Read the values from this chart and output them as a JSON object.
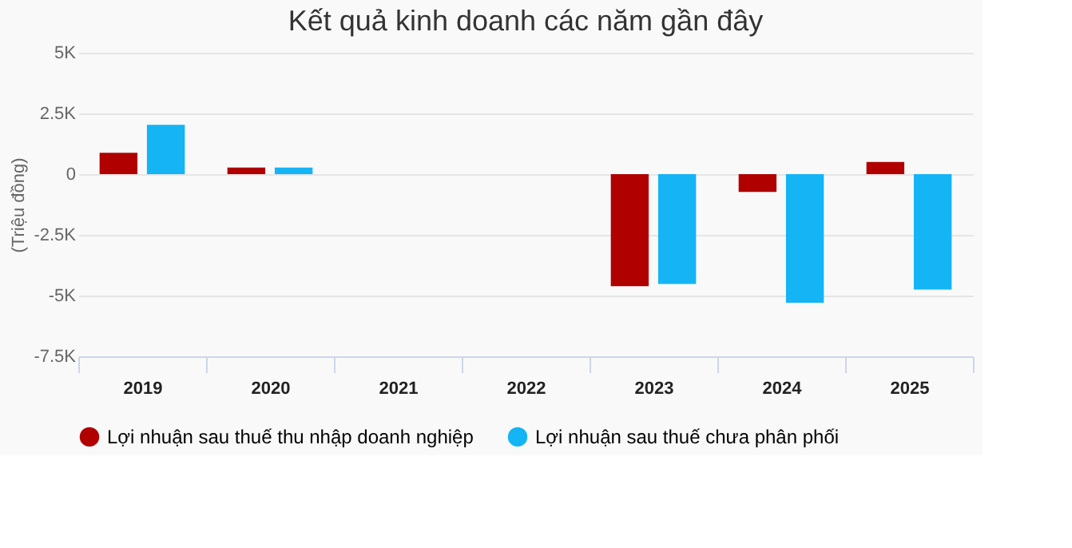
{
  "chart_data": {
    "type": "bar",
    "title": "Kết quả kinh doanh các năm gần đây",
    "ylabel": "(Triệu đồng)",
    "categories": [
      "2019",
      "2020",
      "2021",
      "2022",
      "2023",
      "2024",
      "2025"
    ],
    "series": [
      {
        "name": "Lợi nhuận sau thuế thu nhập doanh nghiệp",
        "color": "#b00000",
        "values": [
          880,
          270,
          null,
          null,
          -4610,
          -730,
          500
        ]
      },
      {
        "name": "Lợi nhuận sau thuế chưa phân phối",
        "color": "#14b4f5",
        "values": [
          2030,
          270,
          null,
          null,
          -4520,
          -5300,
          -4750
        ]
      }
    ],
    "ylim": [
      -7500,
      5000
    ],
    "yticks": [
      {
        "value": -7500,
        "label": "-7.5K"
      },
      {
        "value": -5000,
        "label": "-5K"
      },
      {
        "value": -2500,
        "label": "-2.5K"
      },
      0,
      {
        "value": 2500,
        "label": "2.5K"
      },
      {
        "value": 5000,
        "label": "5K"
      }
    ],
    "grid": "y",
    "legend": "bottom"
  }
}
